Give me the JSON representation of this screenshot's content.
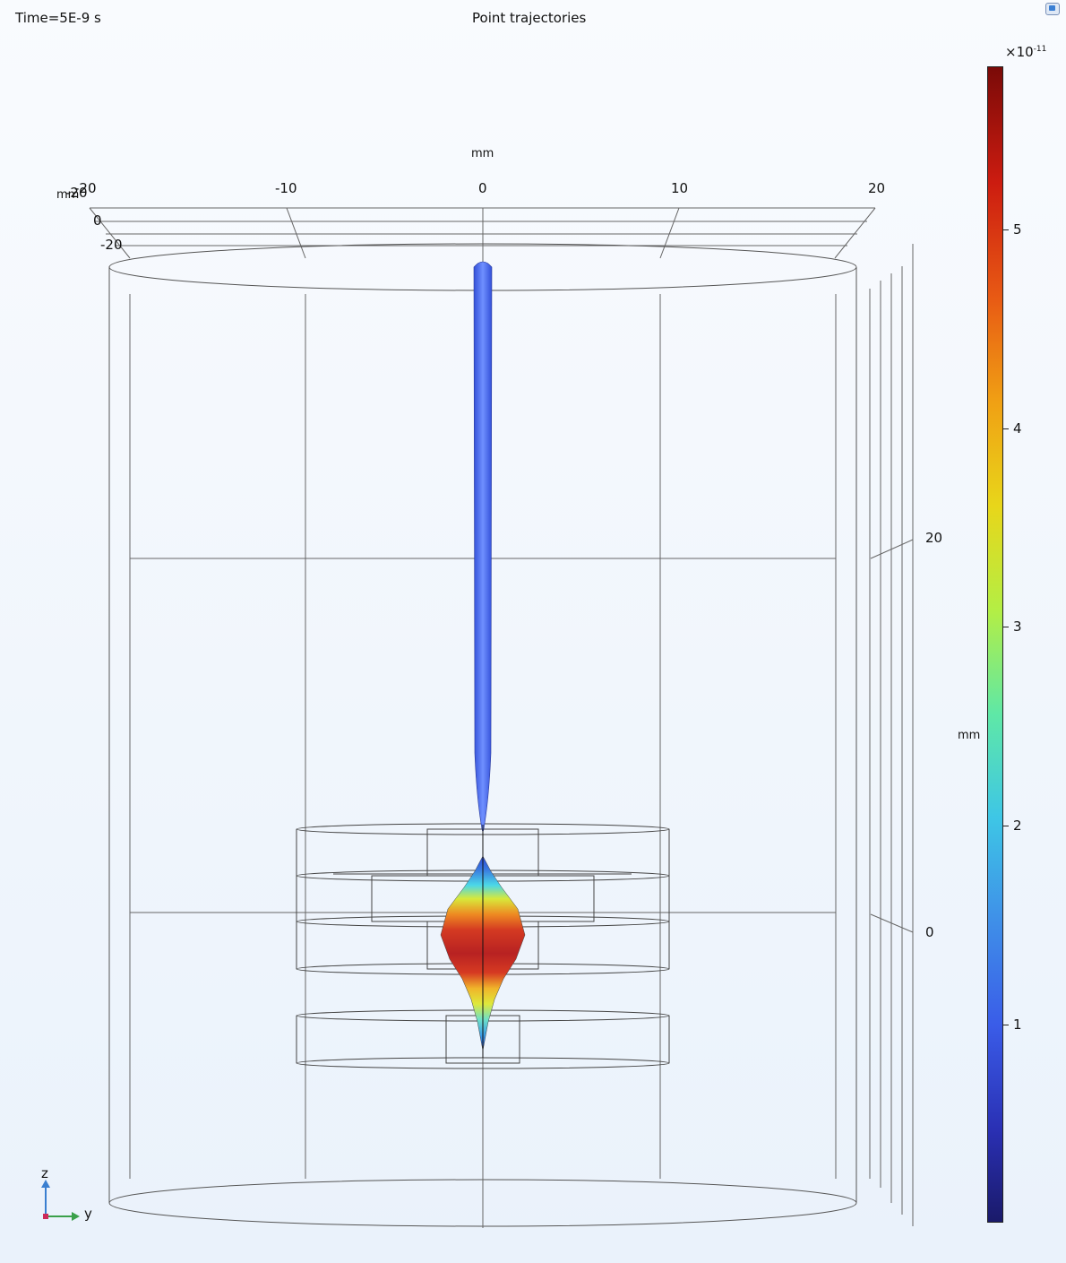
{
  "header": {
    "time_label": "Time=5E-9 s",
    "title": "Point trajectories"
  },
  "axes": {
    "unit": "mm",
    "y_ticks": [
      "-20",
      "-10",
      "0",
      "10",
      "20"
    ],
    "x_ticks": [
      "-20",
      "0",
      "-20"
    ],
    "z_ticks": [
      "20",
      "0"
    ],
    "x_corner_unit": "mm"
  },
  "colorbar": {
    "exponent_prefix": "×10",
    "exponent_power": "-11",
    "ticks": [
      "5",
      "4",
      "3",
      "2",
      "1"
    ],
    "colormap": [
      "#1a1a6a",
      "#2a30b4",
      "#3a5ce8",
      "#3f8fe8",
      "#3ec6e6",
      "#5fe8a6",
      "#b4ee44",
      "#e8d61a",
      "#f0a014",
      "#e85a14",
      "#cc1c10",
      "#7a0a08"
    ]
  },
  "triad": {
    "z_label": "z",
    "y_label": "y"
  },
  "toolbar": {
    "icon": "view-menu-icon"
  },
  "colors": {
    "beam": "#4a6ae6",
    "wire": "#4a4a4a",
    "background": "#eef4fb"
  }
}
